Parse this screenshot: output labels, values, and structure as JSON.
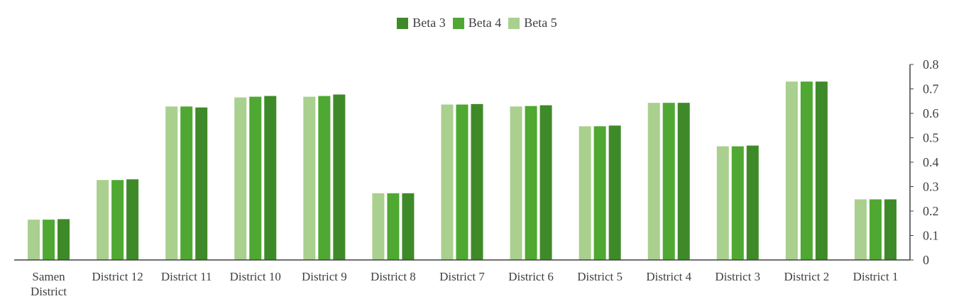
{
  "chart_data": {
    "type": "bar",
    "categories": [
      "Samen District",
      "District 12",
      "District 11",
      "District 10",
      "District 9",
      "District 8",
      "District 7",
      "District 6",
      "District 5",
      "District 4",
      "District 3",
      "District 2",
      "District 1"
    ],
    "series": [
      {
        "name": "Beta 5",
        "color": "#a9d08e",
        "values": [
          0.165,
          0.327,
          0.628,
          0.665,
          0.668,
          0.273,
          0.636,
          0.628,
          0.547,
          0.643,
          0.465,
          0.73,
          0.248
        ]
      },
      {
        "name": "Beta 4",
        "color": "#4fa832",
        "values": [
          0.165,
          0.327,
          0.628,
          0.668,
          0.671,
          0.273,
          0.636,
          0.63,
          0.547,
          0.643,
          0.465,
          0.73,
          0.248
        ]
      },
      {
        "name": "Beta 3",
        "color": "#3f8a28",
        "values": [
          0.167,
          0.33,
          0.624,
          0.671,
          0.677,
          0.273,
          0.638,
          0.633,
          0.55,
          0.643,
          0.468,
          0.73,
          0.248
        ]
      }
    ],
    "legend_order": [
      "Beta 3",
      "Beta 4",
      "Beta 5"
    ],
    "ylim": [
      0,
      0.8
    ],
    "yticks": [
      "0",
      "0.1",
      "0.2",
      "0.3",
      "0.4",
      "0.5",
      "0.6",
      "0.7",
      "0.8"
    ],
    "yaxis_side": "right",
    "legend_position": "top-center",
    "grid": false,
    "title": "",
    "xlabel": "",
    "ylabel": ""
  }
}
